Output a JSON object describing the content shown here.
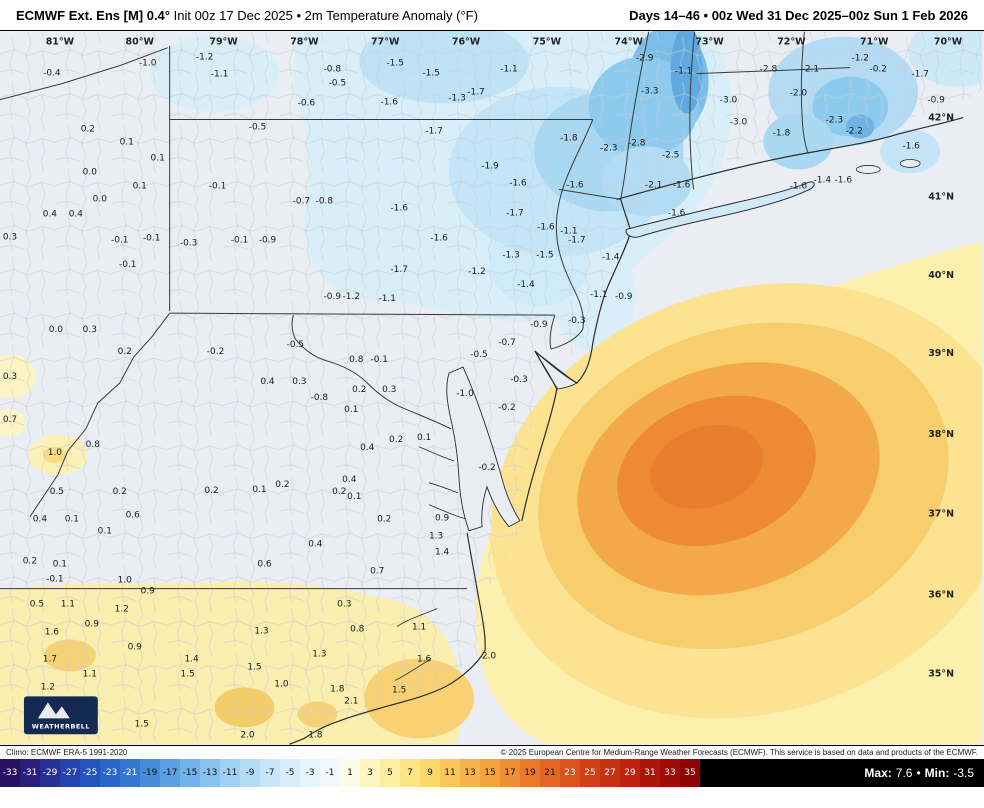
{
  "header": {
    "title_bold": "ECMWF Ext. Ens [M] 0.4°",
    "title_rest": " Init 00z 17 Dec 2025 • 2m Temperature Anomaly (°F)",
    "right": "Days 14–46 • 00z Wed 31 Dec 2025–00z Sun 1 Feb 2026"
  },
  "footer": {
    "climo": "Climo: ECMWF ERA-5 1991-2020",
    "copyright": "© 2025 European Centre for Medium-Range Weather Forecasts (ECMWF). This service is based on data and products of the ECMWF.",
    "stats": {
      "max_label": "Max:",
      "max_value": "7.6",
      "sep": "•",
      "min_label": "Min:",
      "min_value": "-3.5"
    }
  },
  "colorbar": {
    "ticks": [
      -33,
      -31,
      -29,
      -27,
      -25,
      -23,
      -21,
      -19,
      -17,
      -15,
      -13,
      -11,
      -9,
      -7,
      -5,
      -3,
      -1,
      1,
      3,
      5,
      7,
      9,
      11,
      13,
      15,
      17,
      19,
      21,
      23,
      25,
      27,
      29,
      31,
      33,
      35
    ],
    "colors": [
      "#2a1060",
      "#2a1d7e",
      "#273094",
      "#2442ab",
      "#2353bd",
      "#2a66c9",
      "#3379d2",
      "#458dda",
      "#5ba0e2",
      "#72b2e9",
      "#8ac2ef",
      "#a0d0f4",
      "#b4dcf7",
      "#c8e6fa",
      "#d8eefb",
      "#e6f4fd",
      "#f2f9fe",
      "#fdfce8",
      "#fdf6c0",
      "#fdefa0",
      "#fce384",
      "#fbd76c",
      "#f9c75a",
      "#f6b54a",
      "#f3a23c",
      "#ef8e32",
      "#ea7a2a",
      "#e36622",
      "#db521c",
      "#d24016",
      "#c83012",
      "#bc220e",
      "#ae150a",
      "#9f0c06",
      "#8f0503"
    ]
  },
  "map": {
    "logo_text": "WEATHERBELL",
    "lon_labels": [
      [
        60,
        "81°W"
      ],
      [
        140,
        "80°W"
      ],
      [
        224,
        "79°W"
      ],
      [
        305,
        "78°W"
      ],
      [
        386,
        "77°W"
      ],
      [
        467,
        "76°W"
      ],
      [
        548,
        "75°W"
      ],
      [
        630,
        "74°W"
      ],
      [
        711,
        "73°W"
      ],
      [
        793,
        "72°W"
      ],
      [
        876,
        "71°W"
      ],
      [
        950,
        "70°W"
      ]
    ],
    "lat_labels": [
      [
        89,
        "42°N"
      ],
      [
        168,
        "41°N"
      ],
      [
        247,
        "40°N"
      ],
      [
        325,
        "39°N"
      ],
      [
        406,
        "38°N"
      ],
      [
        486,
        "37°N"
      ],
      [
        567,
        "36°N"
      ],
      [
        646,
        "35°N"
      ]
    ],
    "values": [
      [
        52,
        44,
        "-0.4"
      ],
      [
        148,
        34,
        "-1.0"
      ],
      [
        205,
        28,
        "-1.2"
      ],
      [
        220,
        45,
        "-1.1"
      ],
      [
        333,
        40,
        "-0.8"
      ],
      [
        338,
        54,
        "-0.5"
      ],
      [
        396,
        34,
        "-1.5"
      ],
      [
        432,
        44,
        "-1.5"
      ],
      [
        510,
        40,
        "-1.1"
      ],
      [
        307,
        74,
        "-0.6"
      ],
      [
        390,
        73,
        "-1.6"
      ],
      [
        458,
        69,
        "-1.3"
      ],
      [
        477,
        63,
        "-1.7"
      ],
      [
        646,
        29,
        "-2.9"
      ],
      [
        685,
        42,
        "-1.1"
      ],
      [
        651,
        62,
        "-3.3"
      ],
      [
        730,
        71,
        "-3.0"
      ],
      [
        770,
        40,
        "-2.8"
      ],
      [
        812,
        40,
        "-2.1"
      ],
      [
        800,
        64,
        "-2.0"
      ],
      [
        862,
        29,
        "-1.2"
      ],
      [
        880,
        40,
        "-0.2"
      ],
      [
        922,
        45,
        "-1.7"
      ],
      [
        938,
        71,
        "-0.9"
      ],
      [
        88,
        100,
        "0.2"
      ],
      [
        127,
        113,
        "0.1"
      ],
      [
        158,
        129,
        "0.1"
      ],
      [
        258,
        98,
        "-0.5"
      ],
      [
        435,
        102,
        "-1.7"
      ],
      [
        570,
        109,
        "-1.8"
      ],
      [
        610,
        119,
        "-2.3"
      ],
      [
        638,
        114,
        "-2.8"
      ],
      [
        672,
        126,
        "-2.5"
      ],
      [
        740,
        93,
        "-3.0"
      ],
      [
        783,
        104,
        "-1.8"
      ],
      [
        836,
        91,
        "-2.3"
      ],
      [
        856,
        102,
        "-2.2"
      ],
      [
        913,
        117,
        "-1.6"
      ],
      [
        90,
        143,
        "0.0"
      ],
      [
        140,
        157,
        "0.1"
      ],
      [
        218,
        157,
        "-0.1"
      ],
      [
        491,
        137,
        "-1.9"
      ],
      [
        519,
        154,
        "-1.6"
      ],
      [
        576,
        156,
        "-1.6"
      ],
      [
        655,
        156,
        "-2.1"
      ],
      [
        683,
        156,
        "-1.6"
      ],
      [
        800,
        157,
        "-1.6"
      ],
      [
        824,
        151,
        "-1.4"
      ],
      [
        845,
        151,
        "-1.6"
      ],
      [
        50,
        185,
        "0.4"
      ],
      [
        76,
        185,
        "0.4"
      ],
      [
        100,
        170,
        "0.0"
      ],
      [
        302,
        172,
        "-0.7"
      ],
      [
        325,
        172,
        "-0.8"
      ],
      [
        400,
        179,
        "-1.6"
      ],
      [
        516,
        184,
        "-1.7"
      ],
      [
        678,
        184,
        "-1.6"
      ],
      [
        547,
        198,
        "-1.6"
      ],
      [
        570,
        202,
        "-1.1"
      ],
      [
        578,
        211,
        "-1.7"
      ],
      [
        612,
        228,
        "-1.4"
      ],
      [
        10,
        208,
        "0.3"
      ],
      [
        120,
        211,
        "-0.1"
      ],
      [
        152,
        209,
        "-0.1"
      ],
      [
        189,
        214,
        "-0.3"
      ],
      [
        240,
        211,
        "-0.1"
      ],
      [
        268,
        211,
        "-0.9"
      ],
      [
        440,
        209,
        "-1.6"
      ],
      [
        512,
        226,
        "-1.3"
      ],
      [
        546,
        226,
        "-1.5"
      ],
      [
        128,
        236,
        "-0.1"
      ],
      [
        400,
        241,
        "-1.7"
      ],
      [
        478,
        243,
        "-1.2"
      ],
      [
        527,
        256,
        "-1.4"
      ],
      [
        333,
        268,
        "-0.9"
      ],
      [
        352,
        268,
        "-1.2"
      ],
      [
        388,
        270,
        "-1.1"
      ],
      [
        600,
        266,
        "-1.1"
      ],
      [
        625,
        268,
        "-0.9"
      ],
      [
        540,
        296,
        "-0.9"
      ],
      [
        578,
        292,
        "-0.3"
      ],
      [
        508,
        314,
        "-0.7"
      ],
      [
        56,
        301,
        "0.0"
      ],
      [
        90,
        301,
        "0.3"
      ],
      [
        125,
        323,
        "0.2"
      ],
      [
        216,
        323,
        "-0.2"
      ],
      [
        296,
        316,
        "-0.5"
      ],
      [
        357,
        331,
        "0.8"
      ],
      [
        380,
        331,
        "-0.1"
      ],
      [
        480,
        326,
        "-0.5"
      ],
      [
        520,
        351,
        "-0.3"
      ],
      [
        10,
        348,
        "0.3"
      ],
      [
        268,
        353,
        "0.4"
      ],
      [
        300,
        353,
        "0.3"
      ],
      [
        360,
        361,
        "0.2"
      ],
      [
        390,
        361,
        "0.3"
      ],
      [
        320,
        369,
        "-0.8"
      ],
      [
        466,
        365,
        "-1.0"
      ],
      [
        508,
        379,
        "-0.2"
      ],
      [
        352,
        381,
        "0.1"
      ],
      [
        10,
        391,
        "0.7"
      ],
      [
        55,
        424,
        "1.0"
      ],
      [
        93,
        416,
        "0.8"
      ],
      [
        368,
        419,
        "0.4"
      ],
      [
        397,
        411,
        "0.2"
      ],
      [
        425,
        409,
        "0.1"
      ],
      [
        488,
        439,
        "-0.2"
      ],
      [
        57,
        463,
        "0.5"
      ],
      [
        120,
        463,
        "0.2"
      ],
      [
        212,
        462,
        "0.2"
      ],
      [
        260,
        461,
        "0.1"
      ],
      [
        283,
        456,
        "0.2"
      ],
      [
        350,
        451,
        "0.4"
      ],
      [
        340,
        463,
        "0.2"
      ],
      [
        355,
        468,
        "0.1"
      ],
      [
        40,
        491,
        "0.4"
      ],
      [
        72,
        491,
        "0.1"
      ],
      [
        105,
        503,
        "0.1"
      ],
      [
        133,
        487,
        "0.6"
      ],
      [
        385,
        491,
        "0.2"
      ],
      [
        443,
        490,
        "0.9"
      ],
      [
        437,
        508,
        "1.3"
      ],
      [
        443,
        524,
        "1.4"
      ],
      [
        316,
        516,
        "0.4"
      ],
      [
        30,
        533,
        "0.2"
      ],
      [
        60,
        536,
        "0.1"
      ],
      [
        265,
        536,
        "0.6"
      ],
      [
        378,
        543,
        "0.7"
      ],
      [
        55,
        551,
        "-0.1"
      ],
      [
        125,
        552,
        "1.0"
      ],
      [
        148,
        563,
        "0.9"
      ],
      [
        37,
        576,
        "0.5"
      ],
      [
        68,
        576,
        "1.1"
      ],
      [
        122,
        581,
        "1.2"
      ],
      [
        345,
        576,
        "0.3"
      ],
      [
        52,
        604,
        "1.6"
      ],
      [
        92,
        596,
        "0.9"
      ],
      [
        262,
        603,
        "1.3"
      ],
      [
        358,
        601,
        "0.8"
      ],
      [
        420,
        599,
        "1.1"
      ],
      [
        50,
        631,
        "1.7"
      ],
      [
        135,
        619,
        "0.9"
      ],
      [
        192,
        631,
        "1.4"
      ],
      [
        255,
        639,
        "1.5"
      ],
      [
        320,
        626,
        "1.3"
      ],
      [
        425,
        631,
        "1.6"
      ],
      [
        48,
        659,
        "1.2"
      ],
      [
        90,
        646,
        "1.1"
      ],
      [
        188,
        646,
        "1.5"
      ],
      [
        282,
        656,
        "1.0"
      ],
      [
        338,
        661,
        "1.8"
      ],
      [
        400,
        662,
        "1.5"
      ],
      [
        352,
        673,
        "2.1"
      ],
      [
        490,
        628,
        "2.0"
      ],
      [
        142,
        696,
        "1.5"
      ],
      [
        248,
        707,
        "2.0"
      ],
      [
        316,
        707,
        "1.8"
      ]
    ]
  }
}
